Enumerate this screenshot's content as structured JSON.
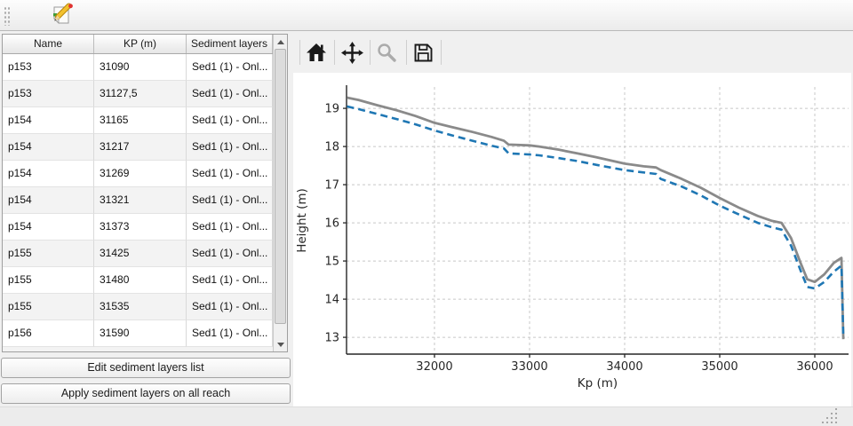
{
  "window": {
    "edit_icon": "edit-sediment-icon",
    "drag_handle_icon": "dock-drag-handle"
  },
  "table": {
    "columns": [
      "Name",
      "KP (m)",
      "Sediment layers"
    ],
    "rows": [
      [
        "p153",
        "31090",
        "Sed1 (1) - Onl..."
      ],
      [
        "p153",
        "31127,5",
        "Sed1 (1) - Onl..."
      ],
      [
        "p154",
        "31165",
        "Sed1 (1) - Onl..."
      ],
      [
        "p154",
        "31217",
        "Sed1 (1) - Onl..."
      ],
      [
        "p154",
        "31269",
        "Sed1 (1) - Onl..."
      ],
      [
        "p154",
        "31321",
        "Sed1 (1) - Onl..."
      ],
      [
        "p154",
        "31373",
        "Sed1 (1) - Onl..."
      ],
      [
        "p155",
        "31425",
        "Sed1 (1) - Onl..."
      ],
      [
        "p155",
        "31480",
        "Sed1 (1) - Onl..."
      ],
      [
        "p155",
        "31535",
        "Sed1 (1) - Onl..."
      ],
      [
        "p156",
        "31590",
        "Sed1 (1) - Onl..."
      ]
    ]
  },
  "buttons": {
    "edit": "Edit sediment layers list",
    "apply": "Apply sediment layers on all reach"
  },
  "plot_toolbar": {
    "icons": [
      "home-icon",
      "pan-icon",
      "zoom-icon",
      "save-icon"
    ],
    "zoom_disabled": true
  },
  "chart_data": {
    "type": "line",
    "title": "",
    "xlabel": "Kp (m)",
    "ylabel": "Height (m)",
    "xlim": [
      31075,
      36355
    ],
    "ylim": [
      12.56,
      19.56
    ],
    "xticks": [
      32000,
      33000,
      34000,
      35000,
      36000
    ],
    "yticks": [
      13,
      14,
      15,
      16,
      17,
      18,
      19
    ],
    "grid": true,
    "legend": "none",
    "colors": {
      "top_line": "#8a8a8a",
      "bottom_line": "#1f77b4",
      "grid": "#c8c8c8"
    },
    "series": [
      {
        "name": "profile-top",
        "style": "solid",
        "color": "#8a8a8a",
        "x": [
          31080,
          31200,
          31400,
          31600,
          31800,
          32000,
          32200,
          32400,
          32600,
          32730,
          32780,
          33000,
          33100,
          33300,
          33500,
          33700,
          34000,
          34200,
          34330,
          34380,
          34600,
          34800,
          35000,
          35200,
          35400,
          35550,
          35650,
          35750,
          35850,
          35920,
          36000,
          36100,
          36200,
          36280,
          36300
        ],
        "y": [
          19.28,
          19.22,
          19.08,
          18.95,
          18.8,
          18.62,
          18.5,
          18.38,
          18.25,
          18.15,
          18.05,
          18.03,
          18.0,
          17.92,
          17.82,
          17.72,
          17.55,
          17.48,
          17.45,
          17.38,
          17.15,
          16.92,
          16.65,
          16.4,
          16.18,
          16.05,
          16.0,
          15.6,
          14.95,
          14.52,
          14.45,
          14.65,
          14.95,
          15.08,
          12.95
        ]
      },
      {
        "name": "profile-bottom",
        "style": "dashed",
        "color": "#1f77b4",
        "x": [
          31080,
          31200,
          31400,
          31600,
          31800,
          32000,
          32200,
          32400,
          32600,
          32730,
          32780,
          33000,
          33100,
          33300,
          33500,
          33700,
          34000,
          34200,
          34330,
          34380,
          34600,
          34800,
          35000,
          35200,
          35400,
          35550,
          35650,
          35750,
          35850,
          35920,
          36000,
          36100,
          36200,
          36280,
          36300
        ],
        "y": [
          19.05,
          18.98,
          18.85,
          18.72,
          18.58,
          18.42,
          18.28,
          18.15,
          18.02,
          17.95,
          17.82,
          17.79,
          17.77,
          17.7,
          17.62,
          17.52,
          17.38,
          17.32,
          17.28,
          17.15,
          16.95,
          16.72,
          16.45,
          16.22,
          16.0,
          15.88,
          15.82,
          15.4,
          14.75,
          14.32,
          14.28,
          14.45,
          14.72,
          14.88,
          13.0
        ]
      }
    ]
  }
}
